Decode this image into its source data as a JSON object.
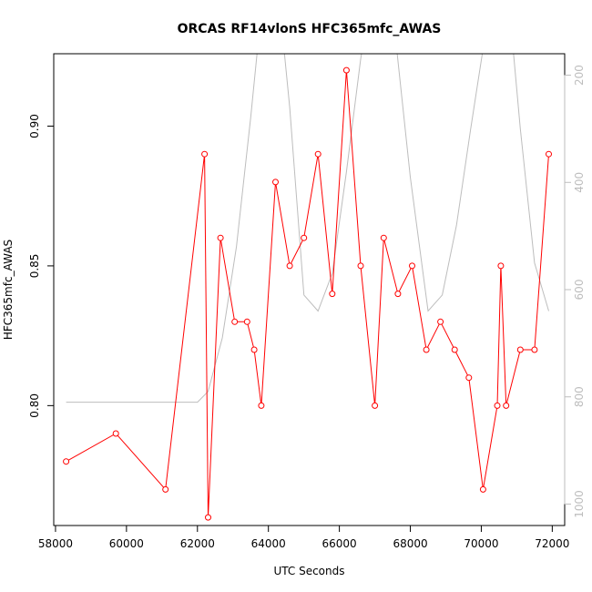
{
  "chart_data": {
    "type": "line",
    "title": "ORCAS RF14vlonS HFC365mfc_AWAS",
    "xlabel": "UTC Seconds",
    "ylabel": "HFC365mfc_AWAS",
    "xlim": [
      57950,
      72350
    ],
    "ylim": [
      0.7571,
      0.9259
    ],
    "x_ticks": [
      "58000",
      "60000",
      "62000",
      "64000",
      "66000",
      "68000",
      "70000",
      "72000"
    ],
    "y_ticks": [
      "0.80",
      "0.85",
      "0.90"
    ],
    "secondary_axis": {
      "side": "right",
      "range": [
        1040,
        160
      ],
      "ticks": [
        "200",
        "400",
        "600",
        "800",
        "1000"
      ],
      "color": "#bdbdbd"
    },
    "series": [
      {
        "color": "#ff0000",
        "marker": "open-circle",
        "x": [
          58300,
          59700,
          61100,
          62200,
          62300,
          62650,
          63050,
          63400,
          63600,
          63800,
          64200,
          64600,
          65000,
          65400,
          65800,
          66200,
          66600,
          67000,
          67250,
          67650,
          68050,
          68450,
          68850,
          69250,
          69650,
          70050,
          70450,
          70550,
          70700,
          71100,
          71500,
          71900
        ],
        "y": [
          0.78,
          0.79,
          0.77,
          0.89,
          0.76,
          0.86,
          0.83,
          0.83,
          0.82,
          0.8,
          0.88,
          0.85,
          0.86,
          0.89,
          0.84,
          0.92,
          0.85,
          0.8,
          0.86,
          0.84,
          0.85,
          0.82,
          0.83,
          0.82,
          0.81,
          0.77,
          0.8,
          0.85,
          0.8,
          0.82,
          0.82,
          0.89
        ]
      },
      {
        "color": "#bdbdbd",
        "axis": "right",
        "x": [
          58300,
          59000,
          60000,
          61000,
          62000,
          62300,
          62700,
          63100,
          63500,
          63800,
          64200,
          64600,
          65000,
          65400,
          65800,
          66200,
          66600,
          67000,
          67500,
          68000,
          68500,
          68900,
          69300,
          69700,
          70100,
          70400,
          70600,
          70800,
          71100,
          71500,
          71900
        ],
        "y": [
          810,
          810,
          810,
          810,
          810,
          790,
          690,
          520,
          280,
          80,
          -10,
          260,
          610,
          640,
          570,
          380,
          170,
          0,
          80,
          390,
          640,
          610,
          480,
          300,
          130,
          10,
          -10,
          80,
          300,
          550,
          640
        ]
      }
    ]
  }
}
